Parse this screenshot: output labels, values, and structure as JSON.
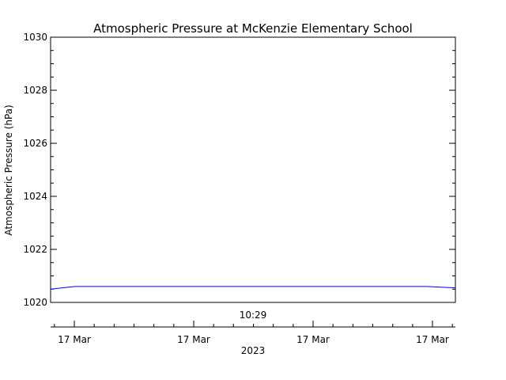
{
  "chart_data": {
    "type": "line",
    "title": "Atmospheric Pressure at McKenzie Elementary School",
    "ylabel": "Atmospheric Pressure (hPa)",
    "xlabel": "2023",
    "time_label": "10:29",
    "ylim": [
      1020,
      1030
    ],
    "y_ticks": [
      "1020",
      "1022",
      "1024",
      "1026",
      "1028",
      "1030"
    ],
    "x_tick_labels": [
      "17 Mar",
      "17 Mar",
      "17 Mar",
      "17 Mar"
    ],
    "line_color": "#0000ff",
    "grid": false,
    "series": [
      {
        "x": [
          0,
          0.06,
          0.93,
          1
        ],
        "values": [
          1020.5,
          1020.6,
          1020.6,
          1020.55
        ]
      }
    ]
  }
}
